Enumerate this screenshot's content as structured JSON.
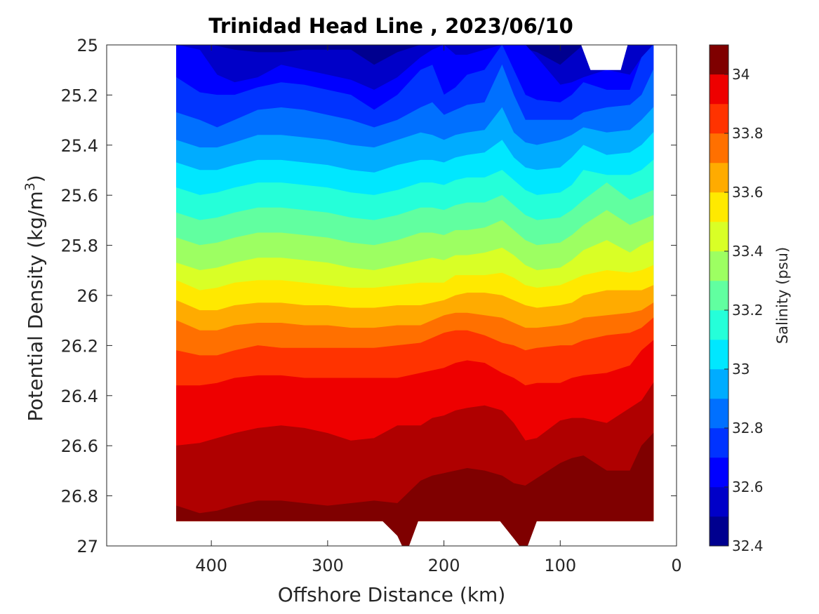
{
  "chart_data": {
    "type": "heatmap",
    "subtype": "filled-contour",
    "title": "Trinidad Head Line , 2023/06/10",
    "xlabel": "Offshore Distance (km)",
    "ylabel_main": "Potential Density (kg/m",
    "ylabel_sup": "3",
    "ylabel_close": ")",
    "x_reversed": true,
    "xlim": [
      490,
      0
    ],
    "ylim": [
      25,
      27
    ],
    "y_reversed": true,
    "x_ticks": [
      400,
      300,
      200,
      100,
      0
    ],
    "y_ticks": [
      25,
      25.2,
      25.4,
      25.6,
      25.8,
      26,
      26.2,
      26.4,
      26.6,
      26.8,
      27
    ],
    "x_tick_labels": [
      "400",
      "300",
      "200",
      "100",
      "0"
    ],
    "y_tick_labels": [
      "25",
      "25.2",
      "25.4",
      "25.6",
      "25.8",
      "26",
      "26.2",
      "26.4",
      "26.6",
      "26.8",
      "27"
    ],
    "colorbar": {
      "label": "Salinity (psu)",
      "range": [
        32.4,
        34.1
      ],
      "levels": [
        32.4,
        32.5,
        32.6,
        32.7,
        32.8,
        32.9,
        33.0,
        33.1,
        33.2,
        33.3,
        33.4,
        33.5,
        33.6,
        33.7,
        33.8,
        33.9,
        34.0,
        34.1
      ],
      "tick_values": [
        32.4,
        32.6,
        32.8,
        33,
        33.2,
        33.4,
        33.6,
        33.8,
        34
      ],
      "tick_labels": [
        "32.4",
        "32.6",
        "32.8",
        "33",
        "33.2",
        "33.4",
        "33.6",
        "33.8",
        "34"
      ],
      "colors": [
        "#00008f",
        "#0000c8",
        "#0000ff",
        "#0033ff",
        "#0070ff",
        "#00acff",
        "#00e7ff",
        "#25ffd9",
        "#61ffa0",
        "#9dff62",
        "#d9ff26",
        "#ffe900",
        "#ffab00",
        "#ff7000",
        "#ff3300",
        "#ee0000",
        "#af0000",
        "#7f0000"
      ]
    },
    "data_extent": {
      "x_max_km": 430,
      "x_min_km": 20,
      "density_max": 26.9
    },
    "contours": [
      {
        "level": 32.5,
        "x": [
          430,
          400,
          380,
          360,
          340,
          320,
          300,
          280,
          260,
          240,
          220,
          200,
          180,
          160,
          150,
          140,
          120,
          100,
          80,
          60,
          40,
          20
        ],
        "y": [
          25.0,
          25.0,
          25.02,
          25.03,
          25.03,
          25.02,
          25.02,
          25.02,
          25.08,
          25.03,
          25.0,
          25.0,
          25.0,
          25.0,
          25.0,
          25.0,
          25.03,
          25.08,
          25.0,
          25.0,
          25.0,
          25.0
        ]
      },
      {
        "level": 32.6,
        "x": [
          430,
          410,
          395,
          380,
          360,
          340,
          320,
          300,
          280,
          260,
          240,
          220,
          210,
          200,
          190,
          180,
          165,
          150,
          140,
          130,
          120,
          100,
          90,
          80,
          60,
          40,
          30,
          20
        ],
        "y": [
          25.0,
          25.02,
          25.12,
          25.15,
          25.13,
          25.08,
          25.1,
          25.12,
          25.14,
          25.18,
          25.13,
          25.05,
          25.02,
          25.0,
          25.04,
          25.04,
          25.02,
          25.0,
          25.0,
          25.0,
          25.05,
          25.16,
          25.15,
          25.13,
          25.1,
          25.12,
          25.05,
          25.0
        ]
      },
      {
        "level": 32.7,
        "x": [
          430,
          410,
          395,
          380,
          360,
          340,
          320,
          300,
          280,
          260,
          240,
          220,
          210,
          200,
          190,
          180,
          165,
          150,
          140,
          130,
          120,
          100,
          90,
          80,
          60,
          40,
          30,
          20
        ],
        "y": [
          25.13,
          25.19,
          25.2,
          25.2,
          25.17,
          25.15,
          25.16,
          25.18,
          25.2,
          25.26,
          25.2,
          25.1,
          25.08,
          25.2,
          25.17,
          25.12,
          25.1,
          25.0,
          25.1,
          25.2,
          25.22,
          25.23,
          25.2,
          25.15,
          25.18,
          25.18,
          25.05,
          25.0
        ]
      },
      {
        "level": 32.8,
        "x": [
          430,
          410,
          395,
          380,
          360,
          340,
          320,
          300,
          280,
          260,
          240,
          220,
          210,
          200,
          190,
          180,
          165,
          150,
          140,
          130,
          120,
          100,
          90,
          80,
          60,
          40,
          30,
          20
        ],
        "y": [
          25.27,
          25.3,
          25.33,
          25.3,
          25.26,
          25.25,
          25.26,
          25.28,
          25.3,
          25.33,
          25.3,
          25.25,
          25.23,
          25.28,
          25.26,
          25.24,
          25.23,
          25.08,
          25.2,
          25.3,
          25.3,
          25.3,
          25.3,
          25.27,
          25.25,
          25.24,
          25.2,
          25.1
        ]
      },
      {
        "level": 32.9,
        "x": [
          430,
          410,
          395,
          380,
          360,
          340,
          320,
          300,
          280,
          260,
          240,
          220,
          210,
          200,
          190,
          180,
          165,
          150,
          140,
          130,
          120,
          100,
          90,
          80,
          60,
          40,
          30,
          20
        ],
        "y": [
          25.38,
          25.41,
          25.41,
          25.39,
          25.36,
          25.36,
          25.37,
          25.38,
          25.4,
          25.41,
          25.38,
          25.35,
          25.36,
          25.38,
          25.36,
          25.35,
          25.34,
          25.25,
          25.35,
          25.39,
          25.4,
          25.38,
          25.36,
          25.33,
          25.35,
          25.34,
          25.3,
          25.25
        ]
      },
      {
        "level": 33.0,
        "x": [
          430,
          410,
          395,
          380,
          360,
          340,
          320,
          300,
          280,
          260,
          240,
          220,
          210,
          200,
          190,
          180,
          165,
          150,
          140,
          130,
          120,
          100,
          90,
          80,
          60,
          40,
          30,
          20
        ],
        "y": [
          25.47,
          25.5,
          25.5,
          25.48,
          25.46,
          25.46,
          25.47,
          25.48,
          25.5,
          25.51,
          25.48,
          25.46,
          25.46,
          25.47,
          25.45,
          25.44,
          25.43,
          25.38,
          25.45,
          25.49,
          25.5,
          25.49,
          25.45,
          25.4,
          25.44,
          25.43,
          25.4,
          25.35
        ]
      },
      {
        "level": 33.1,
        "x": [
          430,
          410,
          395,
          380,
          360,
          340,
          320,
          300,
          280,
          260,
          240,
          220,
          210,
          200,
          190,
          180,
          165,
          150,
          140,
          130,
          120,
          100,
          90,
          80,
          60,
          40,
          30,
          20
        ],
        "y": [
          25.57,
          25.6,
          25.59,
          25.57,
          25.55,
          25.55,
          25.56,
          25.57,
          25.59,
          25.6,
          25.58,
          25.55,
          25.55,
          25.56,
          25.54,
          25.53,
          25.53,
          25.5,
          25.54,
          25.58,
          25.6,
          25.59,
          25.56,
          25.5,
          25.52,
          25.52,
          25.5,
          25.46
        ]
      },
      {
        "level": 33.2,
        "x": [
          430,
          410,
          395,
          380,
          360,
          340,
          320,
          300,
          280,
          260,
          240,
          220,
          210,
          200,
          190,
          180,
          165,
          150,
          140,
          130,
          120,
          100,
          90,
          80,
          60,
          40,
          30,
          20
        ],
        "y": [
          25.67,
          25.7,
          25.69,
          25.67,
          25.65,
          25.65,
          25.66,
          25.67,
          25.69,
          25.7,
          25.68,
          25.65,
          25.65,
          25.66,
          25.64,
          25.63,
          25.63,
          25.6,
          25.64,
          25.68,
          25.7,
          25.69,
          25.66,
          25.62,
          25.55,
          25.62,
          25.6,
          25.58
        ]
      },
      {
        "level": 33.3,
        "x": [
          430,
          410,
          395,
          380,
          360,
          340,
          320,
          300,
          280,
          260,
          240,
          220,
          210,
          200,
          190,
          180,
          165,
          150,
          140,
          130,
          120,
          100,
          90,
          80,
          60,
          40,
          30,
          20
        ],
        "y": [
          25.77,
          25.8,
          25.79,
          25.77,
          25.75,
          25.75,
          25.76,
          25.77,
          25.79,
          25.8,
          25.78,
          25.75,
          25.75,
          25.76,
          25.74,
          25.74,
          25.73,
          25.7,
          25.74,
          25.78,
          25.8,
          25.79,
          25.76,
          25.72,
          25.66,
          25.72,
          25.7,
          25.68
        ]
      },
      {
        "level": 33.4,
        "x": [
          430,
          410,
          395,
          380,
          360,
          340,
          320,
          300,
          280,
          260,
          240,
          220,
          210,
          200,
          190,
          180,
          165,
          150,
          140,
          130,
          120,
          100,
          90,
          80,
          60,
          40,
          30,
          20
        ],
        "y": [
          25.87,
          25.9,
          25.89,
          25.87,
          25.85,
          25.85,
          25.86,
          25.87,
          25.89,
          25.9,
          25.88,
          25.86,
          25.85,
          25.86,
          25.84,
          25.84,
          25.83,
          25.81,
          25.84,
          25.88,
          25.9,
          25.89,
          25.86,
          25.82,
          25.78,
          25.83,
          25.8,
          25.78
        ]
      },
      {
        "level": 33.5,
        "x": [
          430,
          410,
          395,
          380,
          360,
          340,
          320,
          300,
          280,
          260,
          240,
          220,
          210,
          200,
          190,
          180,
          165,
          150,
          140,
          130,
          120,
          100,
          90,
          80,
          60,
          40,
          30,
          20
        ],
        "y": [
          25.94,
          25.98,
          25.97,
          25.95,
          25.94,
          25.94,
          25.95,
          25.96,
          25.97,
          25.97,
          25.96,
          25.95,
          25.95,
          25.95,
          25.92,
          25.92,
          25.92,
          25.91,
          25.93,
          25.96,
          25.97,
          25.96,
          25.94,
          25.92,
          25.9,
          25.91,
          25.9,
          25.88
        ]
      },
      {
        "level": 33.6,
        "x": [
          430,
          410,
          395,
          380,
          360,
          340,
          320,
          300,
          280,
          260,
          240,
          220,
          210,
          200,
          190,
          180,
          165,
          150,
          140,
          130,
          120,
          100,
          90,
          80,
          60,
          40,
          30,
          20
        ],
        "y": [
          26.02,
          26.06,
          26.06,
          26.04,
          26.03,
          26.03,
          26.04,
          26.04,
          26.05,
          26.05,
          26.04,
          26.04,
          26.03,
          26.02,
          26.0,
          25.99,
          25.99,
          26.0,
          26.02,
          26.04,
          26.05,
          26.04,
          26.03,
          26.0,
          25.98,
          25.98,
          25.98,
          25.96
        ]
      },
      {
        "level": 33.7,
        "x": [
          430,
          410,
          395,
          380,
          360,
          340,
          320,
          300,
          280,
          260,
          240,
          220,
          210,
          200,
          190,
          180,
          165,
          150,
          140,
          130,
          120,
          100,
          90,
          80,
          60,
          40,
          30,
          20
        ],
        "y": [
          26.1,
          26.14,
          26.14,
          26.12,
          26.11,
          26.11,
          26.12,
          26.12,
          26.13,
          26.13,
          26.12,
          26.12,
          26.1,
          26.08,
          26.07,
          26.07,
          26.08,
          26.09,
          26.11,
          26.13,
          26.13,
          26.12,
          26.11,
          26.09,
          26.08,
          26.07,
          26.06,
          26.03
        ]
      },
      {
        "level": 33.8,
        "x": [
          430,
          410,
          395,
          380,
          360,
          340,
          320,
          300,
          280,
          260,
          240,
          220,
          210,
          200,
          190,
          180,
          165,
          150,
          140,
          130,
          120,
          100,
          90,
          80,
          60,
          40,
          30,
          20
        ],
        "y": [
          26.22,
          26.24,
          26.24,
          26.22,
          26.2,
          26.21,
          26.21,
          26.21,
          26.21,
          26.21,
          26.2,
          26.19,
          26.17,
          26.15,
          26.14,
          26.14,
          26.16,
          26.19,
          26.2,
          26.22,
          26.21,
          26.2,
          26.2,
          26.18,
          26.16,
          26.15,
          26.13,
          26.09
        ]
      },
      {
        "level": 33.9,
        "x": [
          430,
          410,
          395,
          380,
          360,
          340,
          320,
          300,
          280,
          260,
          240,
          220,
          210,
          200,
          190,
          180,
          165,
          150,
          140,
          130,
          120,
          100,
          90,
          80,
          60,
          40,
          30,
          20
        ],
        "y": [
          26.36,
          26.36,
          26.35,
          26.33,
          26.32,
          26.32,
          26.33,
          26.33,
          26.33,
          26.33,
          26.33,
          26.31,
          26.3,
          26.29,
          26.27,
          26.26,
          26.27,
          26.31,
          26.33,
          26.36,
          26.35,
          26.35,
          26.33,
          26.32,
          26.31,
          26.28,
          26.22,
          26.18
        ]
      },
      {
        "level": 34.0,
        "x": [
          430,
          410,
          395,
          380,
          360,
          340,
          320,
          300,
          280,
          260,
          240,
          220,
          210,
          200,
          190,
          180,
          165,
          150,
          140,
          130,
          120,
          100,
          90,
          80,
          60,
          40,
          30,
          20
        ],
        "y": [
          26.6,
          26.59,
          26.57,
          26.55,
          26.53,
          26.52,
          26.53,
          26.55,
          26.58,
          26.57,
          26.52,
          26.52,
          26.49,
          26.48,
          26.46,
          26.45,
          26.44,
          26.46,
          26.51,
          26.58,
          26.57,
          26.5,
          26.49,
          26.49,
          26.51,
          26.45,
          26.42,
          26.35
        ]
      },
      {
        "level": 34.1,
        "x": [
          430,
          410,
          395,
          380,
          360,
          340,
          320,
          300,
          280,
          260,
          240,
          220,
          210,
          200,
          190,
          180,
          165,
          150,
          140,
          130,
          120,
          100,
          90,
          80,
          60,
          40,
          30,
          20
        ],
        "y": [
          26.84,
          26.87,
          26.86,
          26.84,
          26.82,
          26.82,
          26.83,
          26.84,
          26.83,
          26.82,
          26.83,
          26.74,
          26.72,
          26.71,
          26.7,
          26.69,
          26.7,
          26.72,
          26.75,
          26.76,
          26.73,
          26.67,
          26.65,
          26.64,
          26.7,
          26.7,
          26.6,
          26.55
        ]
      }
    ],
    "deep_spots": [
      {
        "x": [
          253,
          240,
          236,
          230,
          222,
          253
        ],
        "y": [
          26.9,
          26.96,
          27.0,
          27.0,
          26.9,
          26.9
        ]
      },
      {
        "x": [
          152,
          140,
          135,
          128,
          120,
          152
        ],
        "y": [
          26.9,
          26.97,
          27.0,
          27.0,
          26.9,
          26.9
        ]
      },
      {
        "x": [
          110,
          90,
          80,
          70,
          60,
          110
        ],
        "y": [
          26.9,
          26.83,
          26.9,
          26.9,
          26.9,
          26.9
        ]
      }
    ],
    "missing_region": {
      "x": [
        82,
        74,
        48,
        42,
        82
      ],
      "y": [
        25.0,
        25.1,
        25.1,
        25.0,
        25.0
      ]
    }
  }
}
